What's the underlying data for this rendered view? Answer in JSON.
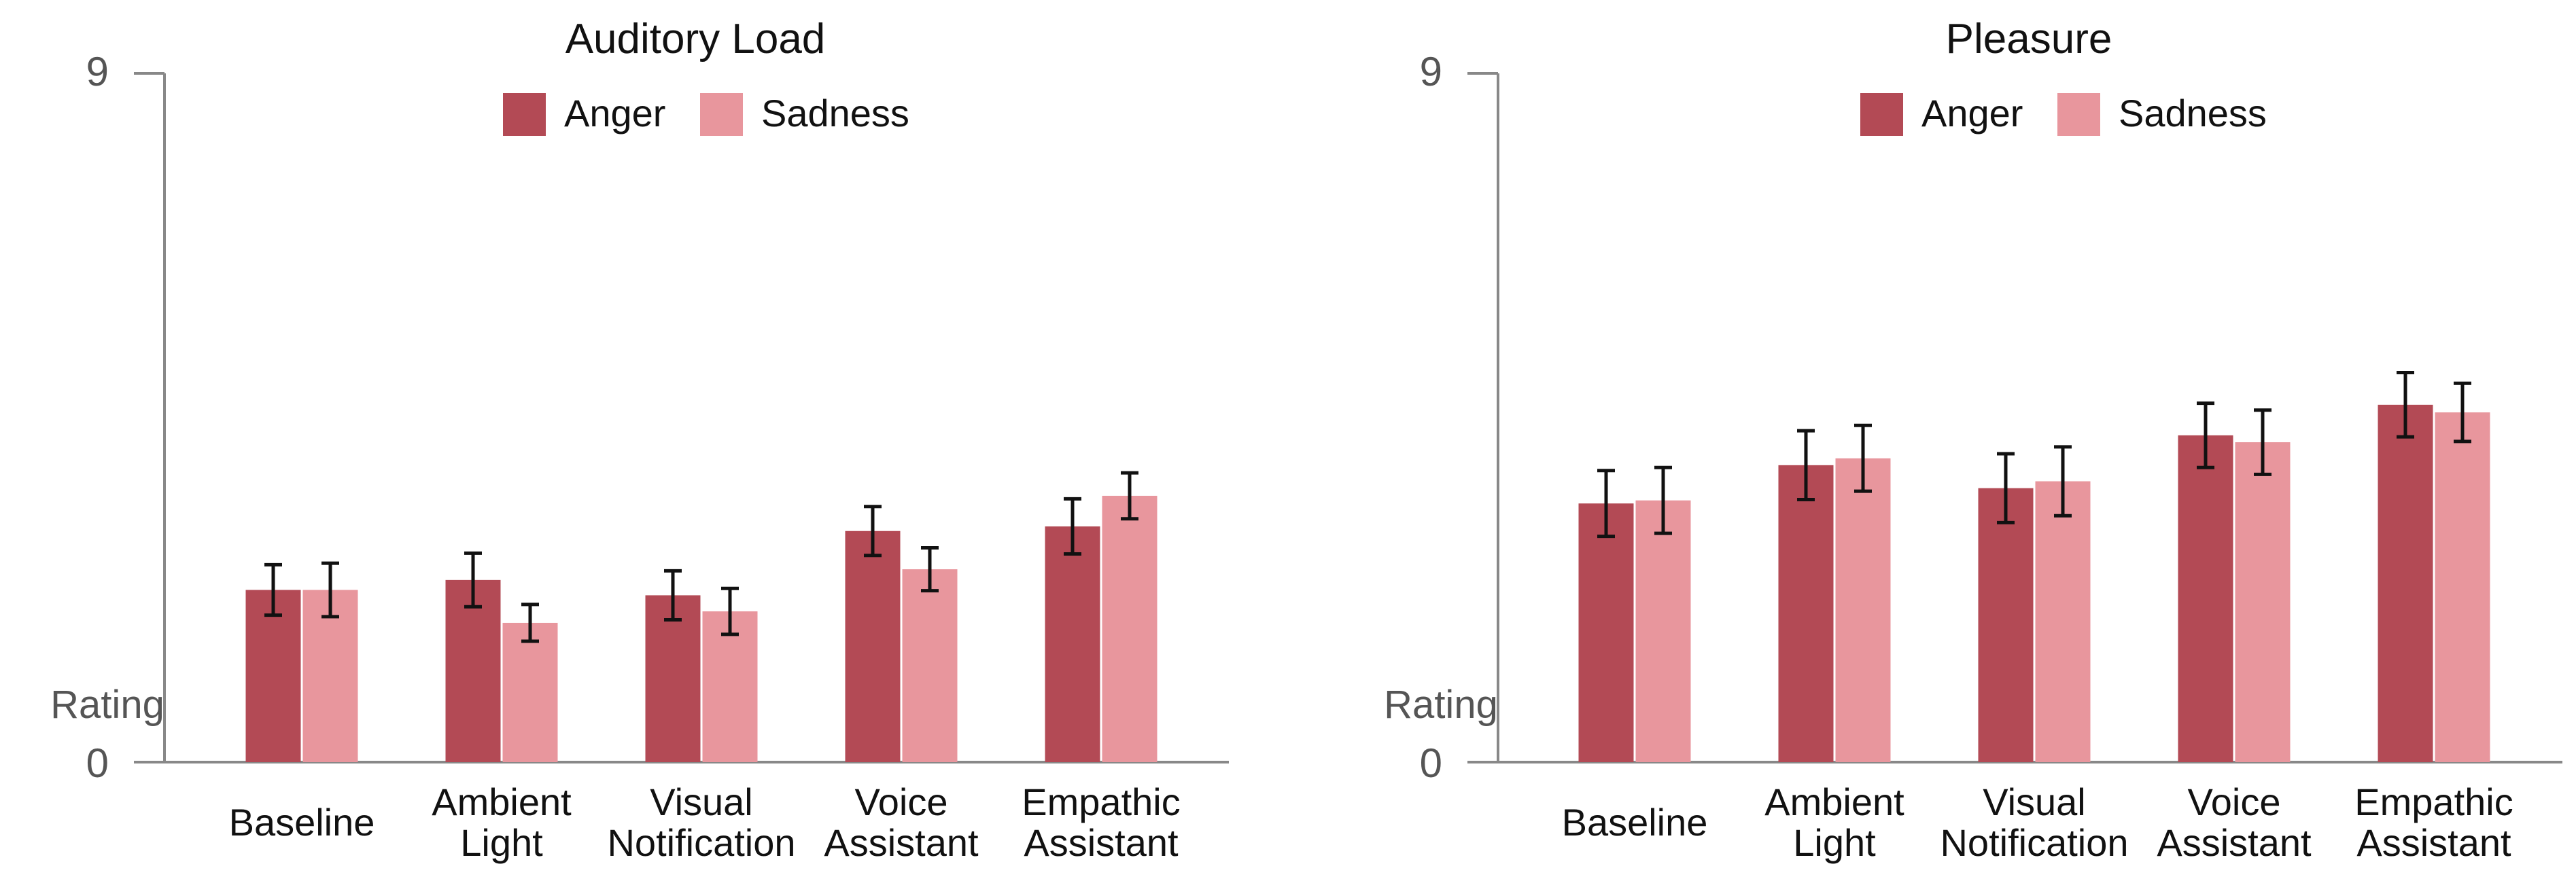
{
  "chart_data": [
    {
      "type": "bar",
      "title": "Auditory Load",
      "ylabel": "Rating",
      "ylim": [
        0,
        9
      ],
      "yticks": [
        "0",
        "9"
      ],
      "categories": [
        [
          "Baseline"
        ],
        [
          "Ambient",
          "Light"
        ],
        [
          "Visual",
          "Notification"
        ],
        [
          "Voice",
          "Assistant"
        ],
        [
          "Empathic",
          "Assistant"
        ]
      ],
      "series": [
        {
          "name": "Anger",
          "color": "#b34a55",
          "values": [
            2.25,
            2.38,
            2.18,
            3.02,
            3.08
          ],
          "errors": [
            0.33,
            0.35,
            0.32,
            0.32,
            0.36
          ]
        },
        {
          "name": "Sadness",
          "color": "#e8969d",
          "values": [
            2.25,
            1.82,
            1.97,
            2.52,
            3.48
          ],
          "errors": [
            0.35,
            0.24,
            0.3,
            0.28,
            0.3
          ]
        }
      ]
    },
    {
      "type": "bar",
      "title": "Pleasure",
      "ylabel": "Rating",
      "ylim": [
        0,
        9
      ],
      "yticks": [
        "0",
        "9"
      ],
      "categories": [
        [
          "Baseline"
        ],
        [
          "Ambient",
          "Light"
        ],
        [
          "Visual",
          "Notification"
        ],
        [
          "Voice",
          "Assistant"
        ],
        [
          "Empathic",
          "Assistant"
        ]
      ],
      "series": [
        {
          "name": "Anger",
          "color": "#b34a55",
          "values": [
            3.38,
            3.88,
            3.58,
            4.27,
            4.67
          ],
          "errors": [
            0.43,
            0.45,
            0.45,
            0.42,
            0.42
          ]
        },
        {
          "name": "Sadness",
          "color": "#e8969d",
          "values": [
            3.42,
            3.97,
            3.67,
            4.18,
            4.57
          ],
          "errors": [
            0.43,
            0.43,
            0.45,
            0.42,
            0.38
          ]
        }
      ]
    }
  ]
}
